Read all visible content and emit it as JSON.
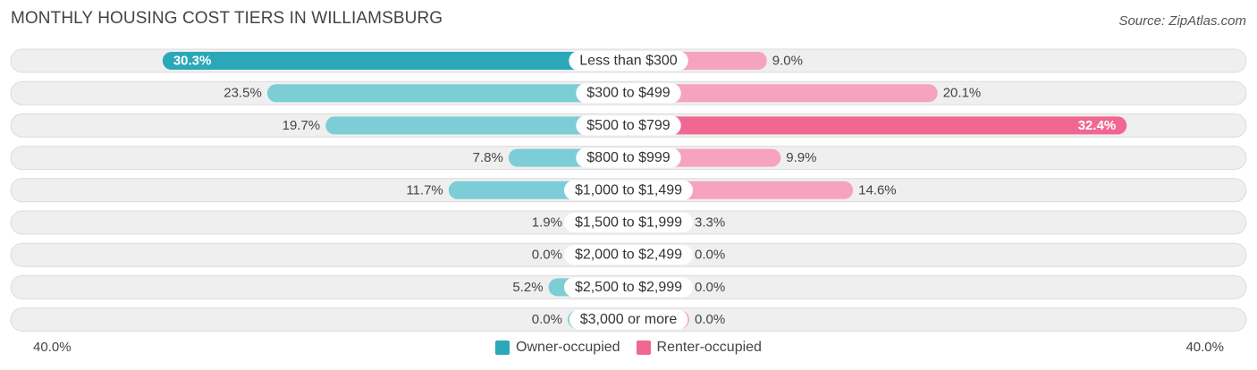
{
  "header": {
    "title": "MONTHLY HOUSING COST TIERS IN WILLIAMSBURG",
    "source": "Source: ZipAtlas.com"
  },
  "colors": {
    "owner_strong": "#2aa8b8",
    "owner_light": "#7ccdd6",
    "renter_strong": "#f06792",
    "renter_light": "#f6a3bd",
    "row_bg": "#efefef",
    "row_border": "#dcdcdc"
  },
  "chart_data": {
    "type": "bar",
    "orientation": "horizontal-diverging",
    "categories": [
      "Less than $300",
      "$300 to $499",
      "$500 to $799",
      "$800 to $999",
      "$1,000 to $1,499",
      "$1,500 to $1,999",
      "$2,000 to $2,499",
      "$2,500 to $2,999",
      "$3,000 or more"
    ],
    "series": [
      {
        "name": "Owner-occupied",
        "values": [
          30.3,
          23.5,
          19.7,
          7.8,
          11.7,
          1.9,
          0.0,
          5.2,
          0.0
        ],
        "labels": [
          "30.3%",
          "23.5%",
          "19.7%",
          "7.8%",
          "11.7%",
          "1.9%",
          "0.0%",
          "5.2%",
          "0.0%"
        ]
      },
      {
        "name": "Renter-occupied",
        "values": [
          9.0,
          20.1,
          32.4,
          9.9,
          14.6,
          3.3,
          0.0,
          0.0,
          0.0
        ],
        "labels": [
          "9.0%",
          "20.1%",
          "32.4%",
          "9.9%",
          "14.6%",
          "3.3%",
          "0.0%",
          "0.0%",
          "0.0%"
        ]
      }
    ],
    "xlim": [
      -40,
      40
    ],
    "axis_min_label": "40.0%",
    "axis_max_label": "40.0%",
    "legend_position": "bottom-center"
  }
}
